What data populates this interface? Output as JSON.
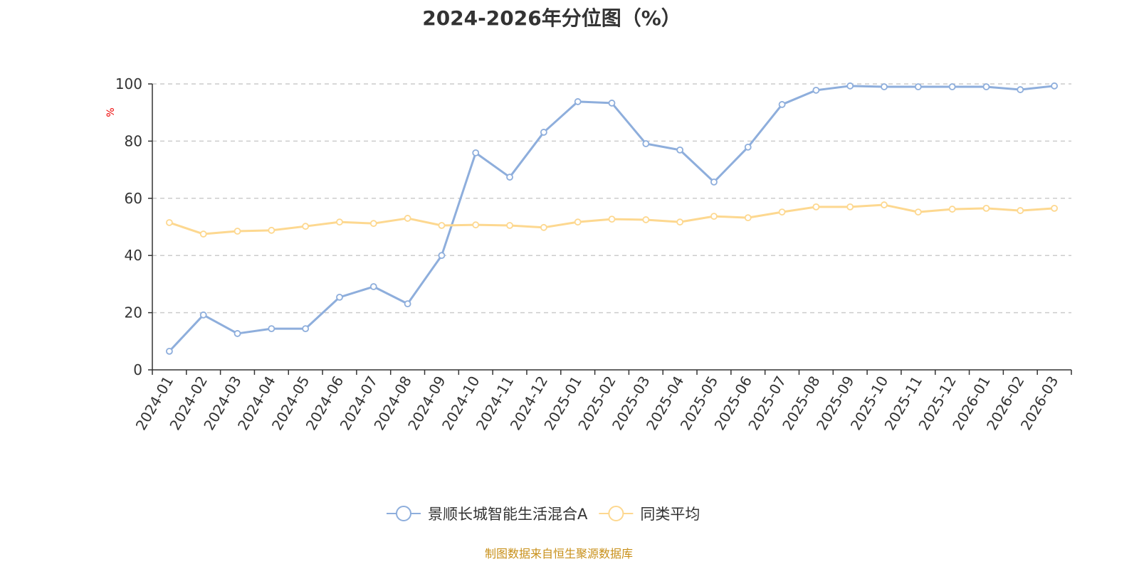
{
  "chart_data": {
    "type": "line",
    "title": "2024-2026年分位图（%）",
    "ylabel": "%",
    "xlabel": "",
    "ylim": [
      0,
      100
    ],
    "yticks": [
      0,
      20,
      40,
      60,
      80,
      100
    ],
    "grid": true,
    "legend_position": "bottom",
    "categories": [
      "2024-01",
      "2024-02",
      "2024-03",
      "2024-04",
      "2024-05",
      "2024-06",
      "2024-07",
      "2024-08",
      "2024-09",
      "2024-10",
      "2024-11",
      "2024-12",
      "2025-01",
      "2025-02",
      "2025-03",
      "2025-04",
      "2025-05",
      "2025-06",
      "2025-07",
      "2025-08",
      "2025-09",
      "2025-10",
      "2025-11",
      "2025-12",
      "2026-01",
      "2026-02",
      "2026-03"
    ],
    "series": [
      {
        "name": "景顺长城智能生活混合A",
        "color": "#8eaedc",
        "values": [
          6.5,
          19.2,
          12.7,
          14.4,
          14.4,
          25.4,
          29.1,
          23.1,
          40.0,
          75.9,
          67.4,
          83.1,
          93.8,
          93.3,
          79.1,
          76.9,
          65.7,
          77.9,
          92.8,
          97.8,
          99.3,
          99.0,
          99.0,
          99.0,
          99.0,
          98.0,
          99.3
        ]
      },
      {
        "name": "同类平均",
        "color": "#fdd890",
        "values": [
          51.5,
          47.5,
          48.5,
          48.8,
          50.2,
          51.7,
          51.2,
          53.0,
          50.5,
          50.7,
          50.5,
          49.8,
          51.7,
          52.7,
          52.5,
          51.7,
          53.7,
          53.2,
          55.2,
          57.0,
          57.0,
          57.7,
          55.2,
          56.2,
          56.5,
          55.7,
          56.5
        ]
      }
    ],
    "source": "制图数据来自恒生聚源数据库"
  }
}
